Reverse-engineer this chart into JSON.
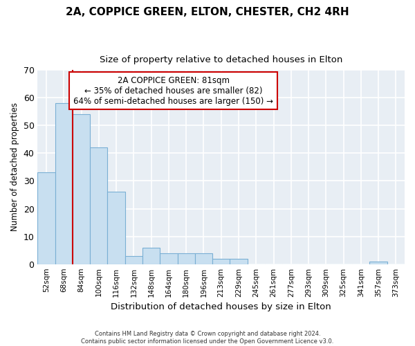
{
  "title1": "2A, COPPICE GREEN, ELTON, CHESTER, CH2 4RH",
  "title2": "Size of property relative to detached houses in Elton",
  "xlabel": "Distribution of detached houses by size in Elton",
  "ylabel": "Number of detached properties",
  "bin_labels": [
    "52sqm",
    "68sqm",
    "84sqm",
    "100sqm",
    "116sqm",
    "132sqm",
    "148sqm",
    "164sqm",
    "180sqm",
    "196sqm",
    "213sqm",
    "229sqm",
    "245sqm",
    "261sqm",
    "277sqm",
    "293sqm",
    "309sqm",
    "325sqm",
    "341sqm",
    "357sqm",
    "373sqm"
  ],
  "bar_values": [
    33,
    58,
    54,
    42,
    26,
    3,
    6,
    4,
    4,
    4,
    2,
    2,
    0,
    0,
    0,
    0,
    0,
    0,
    0,
    1,
    0
  ],
  "bar_color": "#c8dff0",
  "bar_edge_color": "#7aafd4",
  "vline_color": "#cc0000",
  "vline_x": 1.5,
  "annotation_line0": "2A COPPICE GREEN: 81sqm",
  "annotation_line1": "← 35% of detached houses are smaller (82)",
  "annotation_line2": "64% of semi-detached houses are larger (150) →",
  "ylim": [
    0,
    70
  ],
  "yticks": [
    0,
    10,
    20,
    30,
    40,
    50,
    60,
    70
  ],
  "plot_bg_color": "#e8eef4",
  "fig_bg_color": "#ffffff",
  "grid_color": "#ffffff",
  "footer1": "Contains HM Land Registry data © Crown copyright and database right 2024.",
  "footer2": "Contains public sector information licensed under the Open Government Licence v3.0."
}
